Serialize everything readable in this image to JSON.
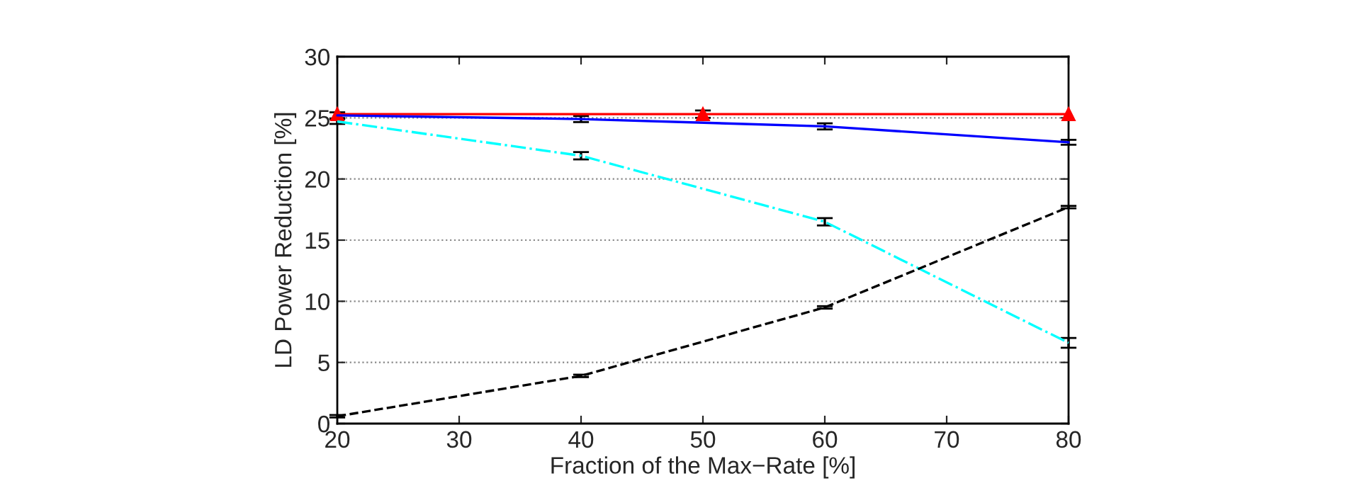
{
  "chart_data": {
    "type": "line",
    "xlabel": "Fraction of the Max−Rate [%]",
    "ylabel": "LD Power Reduction [%]",
    "xlim": [
      20,
      80
    ],
    "xticks": [
      20,
      30,
      40,
      50,
      60,
      70,
      80
    ],
    "ylim": [
      0,
      30
    ],
    "yticks": [
      0,
      5,
      10,
      15,
      20,
      25,
      30
    ],
    "grid": "y",
    "series": [
      {
        "color": "#ff0000",
        "x": [
          20,
          50,
          80
        ],
        "values": [
          25.3,
          25.3,
          25.3
        ],
        "errors": [
          null,
          0.3,
          null
        ],
        "marker": "triangle",
        "line_style": "solid"
      },
      {
        "color": "#0000ff",
        "x": [
          20,
          40,
          60,
          80
        ],
        "values": [
          25.2,
          24.9,
          24.3,
          23.0
        ],
        "errors": [
          0.25,
          0.25,
          0.25,
          0.2
        ],
        "line_style": "solid"
      },
      {
        "color": "#00ffff",
        "x": [
          20,
          40,
          60,
          80
        ],
        "values": [
          24.7,
          21.9,
          16.5,
          6.6
        ],
        "errors": [
          0.2,
          0.3,
          0.3,
          0.4
        ],
        "line_style": "dashdot"
      },
      {
        "color": "#000000",
        "x": [
          20,
          40,
          60,
          80
        ],
        "values": [
          0.6,
          3.9,
          9.5,
          17.7
        ],
        "errors": [
          0.1,
          0.1,
          0.1,
          0.1
        ],
        "line_style": "dashed"
      }
    ]
  }
}
